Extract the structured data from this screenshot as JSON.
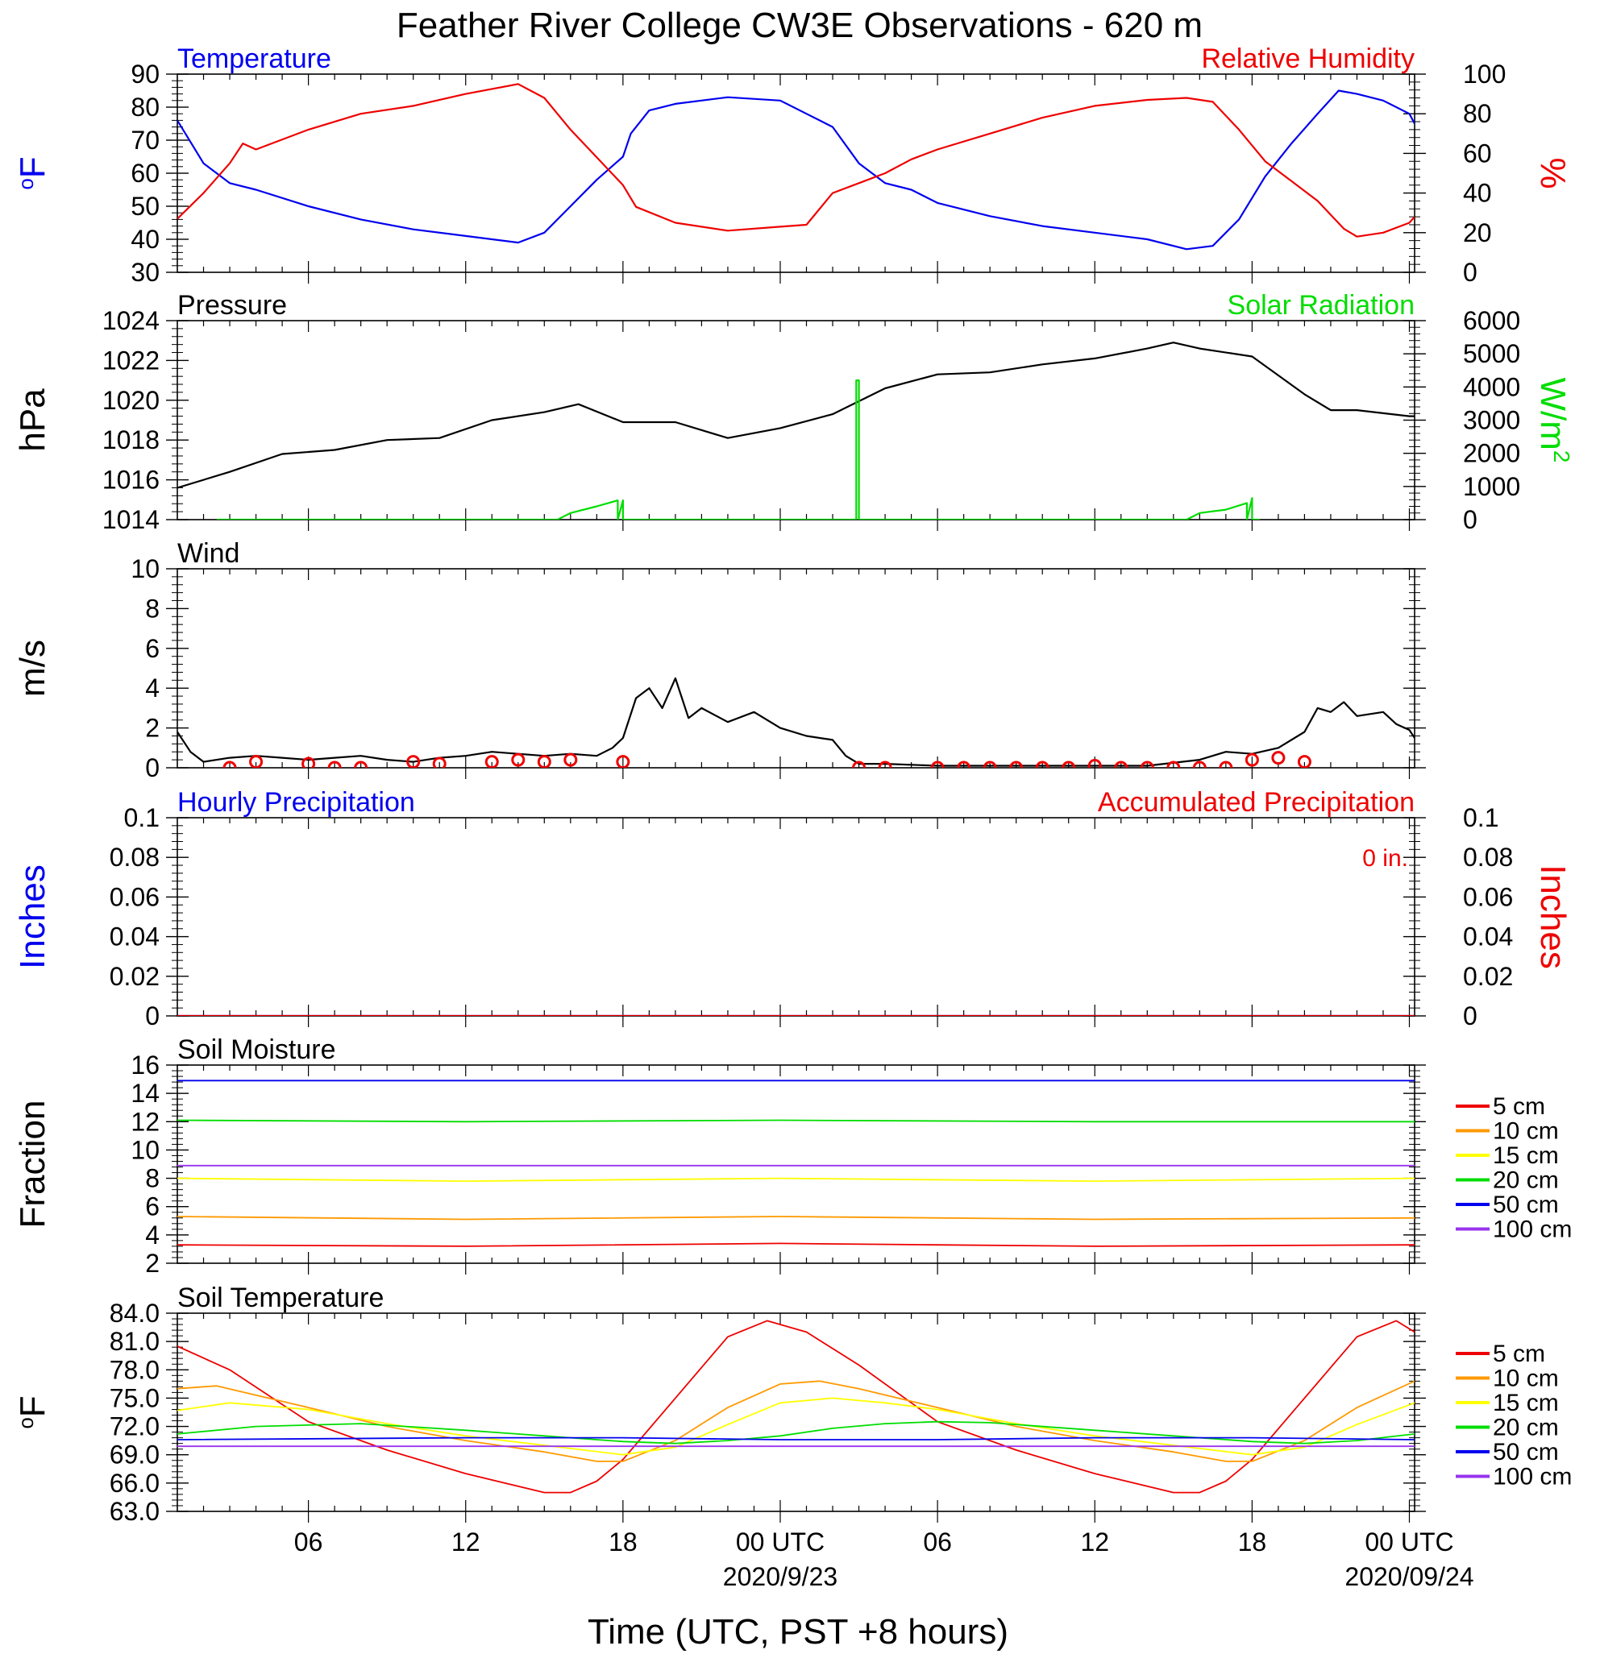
{
  "title": "Feather River College CW3E Observations - 620 m",
  "x_axis": {
    "label": "Time (UTC, PST +8 hours)",
    "ticks": [
      {
        "h": 6,
        "label": "06",
        "date": ""
      },
      {
        "h": 12,
        "label": "12",
        "date": ""
      },
      {
        "h": 18,
        "label": "18",
        "date": ""
      },
      {
        "h": 24,
        "label": "00 UTC",
        "date": "2020/9/23"
      },
      {
        "h": 30,
        "label": "06",
        "date": ""
      },
      {
        "h": 36,
        "label": "12",
        "date": ""
      },
      {
        "h": 42,
        "label": "18",
        "date": ""
      },
      {
        "h": 48,
        "label": "00 UTC",
        "date": "2020/09/24"
      }
    ],
    "range_hours": [
      1,
      48.2
    ]
  },
  "colors": {
    "blue": "#0000ee",
    "red": "#ee0000",
    "green": "#00dd00",
    "black": "#000000",
    "orange": "#ff9900",
    "yellow": "#ffff00",
    "purple": "#9933ee"
  },
  "chart_data": [
    {
      "type": "line",
      "id": "temp_rh",
      "title_left": "Temperature",
      "title_right": "Relative Humidity",
      "ylabel_left": "oF",
      "ylabel_right": "%",
      "ylim_left": [
        30,
        90
      ],
      "yticks_left": [
        30,
        40,
        50,
        60,
        70,
        80,
        90
      ],
      "ylim_right": [
        0,
        100
      ],
      "yticks_right": [
        0,
        20,
        40,
        60,
        80,
        100
      ],
      "series": [
        {
          "name": "Temperature",
          "axis": "left",
          "color": "#0000ee",
          "x": [
            1,
            2,
            3,
            4,
            6,
            8,
            10,
            12,
            14,
            15,
            16,
            17,
            18,
            18.3,
            19,
            20,
            22,
            24,
            25,
            26,
            27,
            28,
            29,
            30,
            32,
            34,
            36,
            38,
            39.5,
            40.5,
            41.5,
            42.5,
            43.5,
            44.5,
            45.3,
            46,
            47,
            48,
            48.2
          ],
          "y": [
            76,
            63,
            57,
            55,
            50,
            46,
            43,
            41,
            39,
            42,
            50,
            58,
            65,
            72,
            79,
            81,
            83,
            82,
            78,
            74,
            63,
            57,
            55,
            51,
            47,
            44,
            42,
            40,
            37,
            38,
            46,
            59,
            69,
            78,
            85,
            84,
            82,
            78,
            75
          ]
        },
        {
          "name": "Relative Humidity",
          "axis": "right",
          "color": "#ee0000",
          "x": [
            1,
            2,
            3,
            3.5,
            4,
            6,
            8,
            10,
            12,
            14,
            15,
            16,
            17,
            18,
            18.5,
            20,
            22,
            24,
            25,
            26,
            27,
            28,
            29,
            30,
            32,
            34,
            36,
            38,
            39.5,
            40.5,
            41.5,
            42.5,
            43.5,
            44.5,
            45.5,
            46,
            47,
            48,
            48.2
          ],
          "y": [
            27,
            40,
            55,
            65,
            62,
            72,
            80,
            84,
            90,
            95,
            88,
            72,
            58,
            44,
            33,
            25,
            21,
            23,
            24,
            40,
            45,
            50,
            57,
            62,
            70,
            78,
            84,
            87,
            88,
            86,
            72,
            56,
            46,
            36,
            22,
            18,
            20,
            25,
            28
          ]
        }
      ]
    },
    {
      "type": "line",
      "id": "press_solar",
      "title_left": "Pressure",
      "title_right": "Solar Radiation",
      "ylabel_left": "hPa",
      "ylabel_right": "W/m2",
      "ylim_left": [
        1014,
        1024
      ],
      "yticks_left": [
        1014,
        1016,
        1018,
        1020,
        1022,
        1024
      ],
      "ylim_right": [
        0,
        6000
      ],
      "yticks_right": [
        0,
        1000,
        2000,
        3000,
        4000,
        5000,
        6000
      ],
      "series": [
        {
          "name": "Pressure",
          "axis": "left",
          "color": "#000000",
          "x": [
            1,
            3,
            5,
            7,
            9,
            11,
            13,
            15,
            16.3,
            18,
            20,
            22,
            24,
            26,
            28,
            30,
            32,
            34,
            36,
            38,
            39,
            40,
            42,
            44,
            45,
            46,
            48,
            48.2
          ],
          "y": [
            1015.6,
            1016.4,
            1017.3,
            1017.5,
            1018.0,
            1018.1,
            1019.0,
            1019.4,
            1019.8,
            1018.9,
            1018.9,
            1018.1,
            1018.6,
            1019.3,
            1020.6,
            1021.3,
            1021.4,
            1021.8,
            1022.1,
            1022.6,
            1022.9,
            1022.6,
            1022.2,
            1020.3,
            1019.5,
            1019.5,
            1019.2,
            1019.2
          ]
        },
        {
          "name": "Solar Radiation",
          "axis": "right",
          "color": "#00dd00",
          "x": [
            2.5,
            15.5,
            16,
            17,
            17.8,
            17.8,
            18,
            18,
            26.9,
            26.9,
            27,
            27,
            39.5,
            40,
            41,
            41.8,
            41.8,
            42,
            42,
            42.3
          ],
          "y": [
            0,
            0,
            200,
            400,
            580,
            0,
            580,
            0,
            0,
            4200,
            4200,
            0,
            0,
            200,
            300,
            500,
            0,
            650,
            0,
            0
          ]
        }
      ]
    },
    {
      "type": "line",
      "id": "wind",
      "title_left": "Wind",
      "ylabel_left": "m/s",
      "ylim_left": [
        0,
        10
      ],
      "yticks_left": [
        0,
        2,
        4,
        6,
        8,
        10
      ],
      "series": [
        {
          "name": "Wind",
          "axis": "left",
          "color": "#000000",
          "x": [
            1,
            1.5,
            2,
            3,
            4,
            5,
            6,
            7,
            8,
            9,
            10,
            11,
            12,
            13,
            14,
            15,
            16,
            17,
            17.6,
            18,
            18.5,
            19,
            19.5,
            20,
            20.5,
            21,
            22,
            23,
            24,
            25,
            26,
            26.5,
            27,
            28,
            30,
            32,
            34,
            36,
            38,
            40,
            41,
            42,
            43,
            44,
            44.5,
            45,
            45.5,
            46,
            47,
            47.5,
            48,
            48.2
          ],
          "y": [
            1.8,
            0.8,
            0.3,
            0.5,
            0.6,
            0.5,
            0.4,
            0.5,
            0.6,
            0.4,
            0.3,
            0.5,
            0.6,
            0.8,
            0.7,
            0.6,
            0.7,
            0.6,
            1.0,
            1.5,
            3.5,
            4.0,
            3.0,
            4.5,
            2.5,
            3.0,
            2.3,
            2.8,
            2.0,
            1.6,
            1.4,
            0.6,
            0.2,
            0.2,
            0.1,
            0.1,
            0.1,
            0.1,
            0.1,
            0.4,
            0.8,
            0.7,
            1.0,
            1.8,
            3.0,
            2.8,
            3.3,
            2.6,
            2.8,
            2.2,
            1.9,
            1.5
          ]
        },
        {
          "name": "Wind obs",
          "axis": "left",
          "color": "#ee0000",
          "style": "circles",
          "x": [
            3,
            4,
            6,
            7,
            8,
            10,
            11,
            13,
            14,
            15,
            16,
            18,
            27,
            28,
            30,
            31,
            32,
            33,
            34,
            35,
            36,
            37,
            38,
            39,
            40,
            41,
            42,
            43,
            44
          ],
          "y": [
            0,
            0.3,
            0.2,
            0,
            0,
            0.3,
            0.2,
            0.3,
            0.4,
            0.3,
            0.4,
            0.3,
            0,
            0,
            0,
            0,
            0,
            0,
            0,
            0,
            0.1,
            0,
            0,
            0,
            0,
            0,
            0.4,
            0.5,
            0.3
          ]
        }
      ]
    },
    {
      "type": "line",
      "id": "precip",
      "title_left": "Hourly Precipitation",
      "title_right": "Accumulated Precipitation",
      "annotation": "0 in.",
      "ylabel_left": "Inches",
      "ylabel_right": "Inches",
      "ylim_left": [
        0,
        0.1
      ],
      "yticks_left": [
        0.0,
        0.02,
        0.04,
        0.06,
        0.08,
        0.1
      ],
      "ylim_right": [
        0,
        0.1
      ],
      "yticks_right": [
        0.0,
        0.02,
        0.04,
        0.06,
        0.08,
        0.1
      ],
      "series": [
        {
          "name": "Hourly Precipitation",
          "axis": "left",
          "color": "#0000ee",
          "x": [
            1,
            48.2
          ],
          "y": [
            0,
            0
          ]
        },
        {
          "name": "Accumulated Precipitation",
          "axis": "right",
          "color": "#ee0000",
          "x": [
            1,
            48.2
          ],
          "y": [
            0,
            0
          ]
        }
      ]
    },
    {
      "type": "line",
      "id": "soil_moisture",
      "title_left": "Soil Moisture",
      "ylabel_left": "Fraction",
      "ylim_left": [
        2,
        16
      ],
      "yticks_left": [
        2,
        4,
        6,
        8,
        10,
        12,
        14,
        16
      ],
      "series": [
        {
          "name": "5 cm",
          "axis": "left",
          "color": "#ee0000",
          "x": [
            1,
            12,
            24,
            30,
            36,
            48.2
          ],
          "y": [
            3.3,
            3.2,
            3.4,
            3.3,
            3.2,
            3.3
          ]
        },
        {
          "name": "10 cm",
          "axis": "left",
          "color": "#ff9900",
          "x": [
            1,
            12,
            24,
            36,
            48.2
          ],
          "y": [
            5.3,
            5.1,
            5.3,
            5.1,
            5.2
          ]
        },
        {
          "name": "15 cm",
          "axis": "left",
          "color": "#ffff00",
          "x": [
            1,
            12,
            24,
            36,
            48.2
          ],
          "y": [
            8.0,
            7.8,
            8.0,
            7.8,
            8.0
          ]
        },
        {
          "name": "20 cm",
          "axis": "left",
          "color": "#00dd00",
          "x": [
            1,
            12,
            24,
            36,
            48.2
          ],
          "y": [
            12.1,
            12.0,
            12.1,
            12.0,
            12.0
          ]
        },
        {
          "name": "50 cm",
          "axis": "left",
          "color": "#0000ee",
          "x": [
            1,
            48.2
          ],
          "y": [
            14.9,
            14.9
          ]
        },
        {
          "name": "100 cm",
          "axis": "left",
          "color": "#9933ee",
          "x": [
            1,
            48.2
          ],
          "y": [
            8.9,
            8.9
          ]
        }
      ]
    },
    {
      "type": "line",
      "id": "soil_temp",
      "title_left": "Soil Temperature",
      "ylabel_left": "oF",
      "ylim_left": [
        63,
        84
      ],
      "yticks_left": [
        "63.0",
        "66.0",
        "69.0",
        "72.0",
        "75.0",
        "78.0",
        "81.0",
        "84.0"
      ],
      "series": [
        {
          "name": "5 cm",
          "axis": "left",
          "color": "#ee0000",
          "x": [
            1,
            3,
            6,
            9,
            12,
            15,
            16,
            17,
            18,
            20,
            22,
            23.5,
            25,
            27,
            30,
            33,
            36,
            39,
            40,
            41,
            42,
            44,
            46,
            47.5,
            48.2
          ],
          "y": [
            80.5,
            78,
            72.5,
            69.5,
            67,
            65,
            65,
            66.2,
            68.5,
            75,
            81.5,
            83.2,
            82,
            78.5,
            72.5,
            69.5,
            67,
            65,
            65,
            66.2,
            68.5,
            75,
            81.5,
            83.2,
            82
          ]
        },
        {
          "name": "10 cm",
          "axis": "left",
          "color": "#ff9900",
          "x": [
            1,
            2.5,
            6,
            9,
            12,
            15,
            17,
            18,
            20,
            22,
            24,
            25.5,
            27,
            30,
            33,
            36,
            39,
            41,
            42,
            44,
            46,
            48.2
          ],
          "y": [
            76,
            76.3,
            74,
            72,
            70.5,
            69.3,
            68.3,
            68.3,
            70.5,
            74,
            76.5,
            76.8,
            76,
            74,
            72,
            70.5,
            69.3,
            68.3,
            68.3,
            70.5,
            74,
            76.8
          ]
        },
        {
          "name": "15 cm",
          "axis": "left",
          "color": "#ffff00",
          "x": [
            1,
            3,
            6,
            9,
            12,
            15,
            18,
            20,
            22,
            24,
            26,
            28,
            30,
            33,
            36,
            39,
            42,
            44,
            46,
            48.2
          ],
          "y": [
            73.7,
            74.5,
            73.8,
            72.3,
            71.0,
            70.0,
            69.0,
            69.8,
            72.2,
            74.5,
            75.0,
            74.5,
            73.8,
            72.3,
            71.0,
            70.0,
            69.0,
            69.8,
            72.2,
            74.5
          ]
        },
        {
          "name": "20 cm",
          "axis": "left",
          "color": "#00dd00",
          "x": [
            1,
            4,
            8,
            12,
            15,
            18,
            20,
            22,
            24,
            26,
            28,
            30,
            32,
            36,
            39,
            42,
            44,
            46,
            48.2
          ],
          "y": [
            71.2,
            72.0,
            72.3,
            71.6,
            71.0,
            70.4,
            70.2,
            70.5,
            71.0,
            71.8,
            72.3,
            72.5,
            72.4,
            71.6,
            71.0,
            70.4,
            70.2,
            70.5,
            71.2
          ]
        },
        {
          "name": "50 cm",
          "axis": "left",
          "color": "#0000ee",
          "x": [
            1,
            12,
            18,
            24,
            30,
            36,
            42,
            48.2
          ],
          "y": [
            70.6,
            70.8,
            70.8,
            70.6,
            70.6,
            70.8,
            70.8,
            70.6
          ]
        },
        {
          "name": "100 cm",
          "axis": "left",
          "color": "#9933ee",
          "x": [
            1,
            48.2
          ],
          "y": [
            69.9,
            69.9
          ]
        }
      ]
    }
  ],
  "legend_entries": [
    "5 cm",
    "10 cm",
    "15 cm",
    "20 cm",
    "50 cm",
    "100 cm"
  ]
}
